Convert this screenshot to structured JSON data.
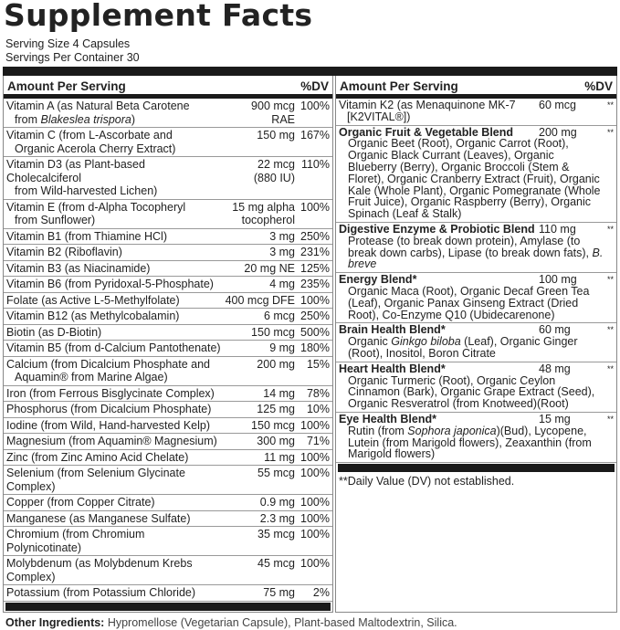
{
  "title": "Supplement Facts",
  "serving_size": "Serving Size 4 Capsules",
  "servings_per_container": "Servings Per Container 30",
  "header": {
    "amount": "Amount Per Serving",
    "dv": "%DV"
  },
  "left_rows": [
    {
      "name": [
        "Vitamin A (as Natural Beta Carotene"
      ],
      "cont": [
        "from ",
        {
          "i": "Blakeslea trispora"
        },
        ")"
      ],
      "amount": [
        "900 mcg",
        "RAE"
      ],
      "dv": "100%"
    },
    {
      "name": [
        "Vitamin C (from L-Ascorbate and"
      ],
      "cont": [
        "Organic Acerola Cherry Extract)"
      ],
      "amount": [
        "150 mg"
      ],
      "dv": "167%"
    },
    {
      "name": [
        "Vitamin D3 (as Plant-based Cholecalciferol"
      ],
      "cont": [
        "from Wild-harvested Lichen)"
      ],
      "amount": [
        "22 mcg",
        "(880 IU)"
      ],
      "dv": "110%"
    },
    {
      "name": [
        "Vitamin E (from d-Alpha Tocopheryl"
      ],
      "cont": [
        "from Sunflower)"
      ],
      "amount": [
        "15 mg alpha",
        "tocopherol"
      ],
      "dv": "100%"
    },
    {
      "name": [
        "Vitamin B1 (from Thiamine HCl)"
      ],
      "amount": [
        "3 mg"
      ],
      "dv": "250%"
    },
    {
      "name": [
        "Vitamin B2 (Riboflavin)"
      ],
      "amount": [
        "3 mg"
      ],
      "dv": "231%"
    },
    {
      "name": [
        "Vitamin B3 (as Niacinamide)"
      ],
      "amount": [
        "20 mg NE"
      ],
      "dv": "125%"
    },
    {
      "name": [
        "Vitamin B6 (from Pyridoxal-5-Phosphate)"
      ],
      "amount": [
        "4 mg"
      ],
      "dv": "235%"
    },
    {
      "name": [
        "Folate (as Active L-5-Methylfolate)"
      ],
      "amount": [
        "400 mcg DFE"
      ],
      "dv": "100%"
    },
    {
      "name": [
        "Vitamin B12 (as Methylcobalamin)"
      ],
      "amount": [
        "6 mcg"
      ],
      "dv": "250%"
    },
    {
      "name": [
        "Biotin (as D-Biotin)"
      ],
      "amount": [
        "150 mcg"
      ],
      "dv": "500%"
    },
    {
      "name": [
        "Vitamin B5 (from d-Calcium Pantothenate)"
      ],
      "amount": [
        "9 mg"
      ],
      "dv": "180%"
    },
    {
      "name": [
        "Calcium (from Dicalcium Phosphate and"
      ],
      "cont": [
        "Aquamin® from Marine Algae)"
      ],
      "amount": [
        "200 mg"
      ],
      "dv": "15%"
    },
    {
      "name": [
        "Iron (from Ferrous Bisglycinate Complex)"
      ],
      "amount": [
        "14 mg"
      ],
      "dv": "78%"
    },
    {
      "name": [
        "Phosphorus (from Dicalcium Phosphate)"
      ],
      "amount": [
        "125 mg"
      ],
      "dv": "10%"
    },
    {
      "name": [
        "Iodine (from Wild, Hand-harvested Kelp)"
      ],
      "amount": [
        "150 mcg"
      ],
      "dv": "100%"
    },
    {
      "name": [
        "Magnesium (from Aquamin® Magnesium)"
      ],
      "amount": [
        "300 mg"
      ],
      "dv": "71%"
    },
    {
      "name": [
        "Zinc (from Zinc Amino Acid Chelate)"
      ],
      "amount": [
        "11 mg"
      ],
      "dv": "100%"
    },
    {
      "name": [
        "Selenium (from Selenium Glycinate Complex)"
      ],
      "amount": [
        "55 mcg"
      ],
      "dv": "100%"
    },
    {
      "name": [
        "Copper (from Copper Citrate)"
      ],
      "amount": [
        "0.9 mg"
      ],
      "dv": "100%"
    },
    {
      "name": [
        "Manganese (as Manganese Sulfate)"
      ],
      "amount": [
        "2.3 mg"
      ],
      "dv": "100%"
    },
    {
      "name": [
        "Chromium (from Chromium Polynicotinate)"
      ],
      "amount": [
        "35 mcg"
      ],
      "dv": "100%"
    },
    {
      "name": [
        "Molybdenum (as Molybdenum Krebs Complex)"
      ],
      "amount": [
        "45 mcg"
      ],
      "dv": "100%"
    },
    {
      "name": [
        "Potassium (from Potassium Chloride)"
      ],
      "amount": [
        "75 mg"
      ],
      "dv": "2%"
    }
  ],
  "right_rows": [
    {
      "name": [
        "Vitamin K2 (as Menaquinone MK-7"
      ],
      "cont": [
        "[K2VITAL®])"
      ],
      "amount": [
        "60 mcg"
      ],
      "dv": "**"
    },
    {
      "name": [
        "Organic Fruit & Vegetable Blend"
      ],
      "bold": true,
      "sub": [
        "Organic Beet (Root), Organic Carrot (Root), Organic Black Currant (Leaves), Organic Blueberry (Berry), Organic Broccoli (Stem & Floret), Organic Cranberry Extract (Fruit), Organic Kale (Whole Plant), Organic Pomegranate (Whole Fruit Juice), Organic Raspberry (Berry), Organic Spinach (Leaf & Stalk)"
      ],
      "amount": [
        "200 mg"
      ],
      "dv": "**"
    },
    {
      "name": [
        "Digestive Enzyme & Probiotic Blend"
      ],
      "bold": true,
      "sub": [
        "Protease (to break down protein), Amylase (to break down carbs), Lipase (to break down fats), ",
        {
          "i": "B. breve"
        }
      ],
      "amount": [
        "110 mg"
      ],
      "dv": "**"
    },
    {
      "name": [
        "Energy Blend*"
      ],
      "bold": true,
      "sub": [
        "Organic Maca (Root), Organic Decaf Green Tea (Leaf), Organic Panax Ginseng Extract (Dried Root), Co-Enzyme Q10 (Ubidecarenone)"
      ],
      "amount": [
        "100 mg"
      ],
      "dv": "**"
    },
    {
      "name": [
        "Brain Health Blend*"
      ],
      "bold": true,
      "sub": [
        "Organic ",
        {
          "i": "Ginkgo biloba"
        },
        " (Leaf), Organic Ginger (Root), Inositol, Boron Citrate"
      ],
      "amount": [
        "60 mg"
      ],
      "dv": "**"
    },
    {
      "name": [
        "Heart Health Blend*"
      ],
      "bold": true,
      "sub": [
        "Organic Turmeric (Root), Organic Ceylon Cinnamon (Bark), Organic Grape Extract (Seed), Organic Resveratrol (from Knotweed)(Root)"
      ],
      "amount": [
        "48 mg"
      ],
      "dv": "**"
    },
    {
      "name": [
        "Eye Health Blend*"
      ],
      "bold": true,
      "sub": [
        "Rutin (from ",
        {
          "i": "Sophora japonica"
        },
        ")(Bud), Lycopene, Lutein (from Marigold flowers), Zeaxanthin (from Marigold flowers)"
      ],
      "amount": [
        "15 mg"
      ],
      "dv": "**"
    }
  ],
  "footnote": "**Daily Value (DV) not established.",
  "other_ingredients": {
    "label": "Other Ingredients:",
    "text": " Hypromellose (Vegetarian Capsule), Plant-based Maltodextrin, Silica."
  }
}
